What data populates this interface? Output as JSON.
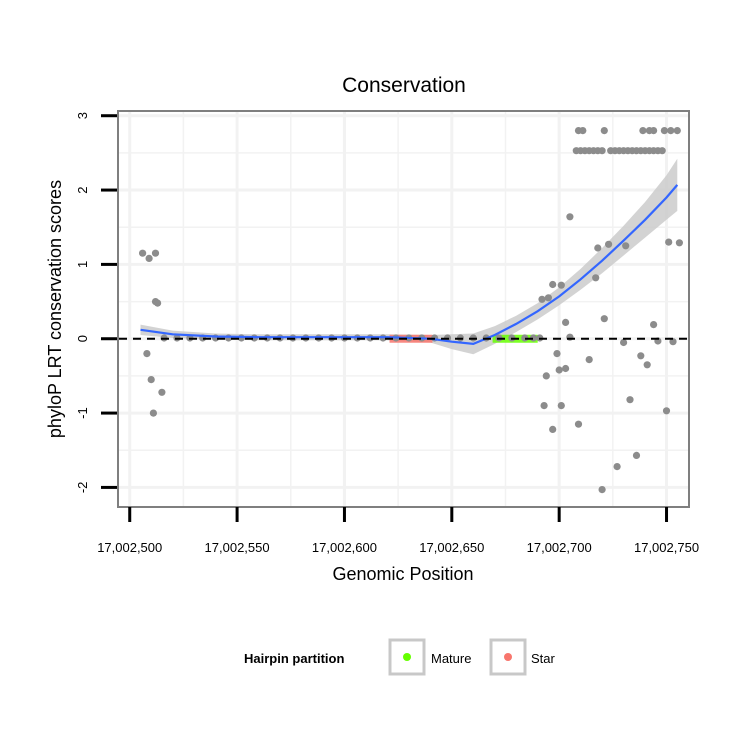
{
  "chart_data": {
    "type": "scatter",
    "title": "Conservation",
    "xlabel": "Genomic Position",
    "ylabel": "phyloP LRT conservation scores",
    "xlim": [
      17002495,
      17002760
    ],
    "ylim": [
      -2.25,
      3.05
    ],
    "x_ticks": [
      {
        "value": 17002500,
        "label": "17,002,500"
      },
      {
        "value": 17002550,
        "label": "17,002,550"
      },
      {
        "value": 17002600,
        "label": "17,002,600"
      },
      {
        "value": 17002650,
        "label": "17,002,650"
      },
      {
        "value": 17002700,
        "label": "17,002,700"
      },
      {
        "value": 17002750,
        "label": "17,002,750"
      }
    ],
    "y_ticks": [
      {
        "value": 3,
        "label": "3"
      },
      {
        "value": 2,
        "label": "2"
      },
      {
        "value": 1,
        "label": "1"
      },
      {
        "value": 0,
        "label": "0"
      },
      {
        "value": -1,
        "label": "-1"
      },
      {
        "value": -2,
        "label": "-2"
      }
    ],
    "reference_line": {
      "y": 0,
      "style": "dashed"
    },
    "points": [
      [
        17002506,
        1.15
      ],
      [
        17002509,
        1.08
      ],
      [
        17002512,
        1.15
      ],
      [
        17002512,
        0.5
      ],
      [
        17002513,
        0.48
      ],
      [
        17002508,
        -0.2
      ],
      [
        17002510,
        -0.55
      ],
      [
        17002511,
        -1.0
      ],
      [
        17002515,
        -0.72
      ],
      [
        17002516,
        0.01
      ],
      [
        17002522,
        0.01
      ],
      [
        17002528,
        0.01
      ],
      [
        17002534,
        0.01
      ],
      [
        17002540,
        0.01
      ],
      [
        17002546,
        0.01
      ],
      [
        17002552,
        0.01
      ],
      [
        17002558,
        0.01
      ],
      [
        17002564,
        0.01
      ],
      [
        17002570,
        0.01
      ],
      [
        17002576,
        0.01
      ],
      [
        17002582,
        0.01
      ],
      [
        17002588,
        0.01
      ],
      [
        17002594,
        0.01
      ],
      [
        17002600,
        0.01
      ],
      [
        17002606,
        0.01
      ],
      [
        17002612,
        0.01
      ],
      [
        17002618,
        0.01
      ],
      [
        17002624,
        0.01
      ],
      [
        17002630,
        0.01
      ],
      [
        17002636,
        0.01
      ],
      [
        17002642,
        0.01
      ],
      [
        17002648,
        0.01
      ],
      [
        17002654,
        0.01
      ],
      [
        17002660,
        0.01
      ],
      [
        17002666,
        0.01
      ],
      [
        17002672,
        0.01
      ],
      [
        17002678,
        0.01
      ],
      [
        17002684,
        0.01
      ],
      [
        17002688,
        0.01
      ],
      [
        17002692,
        0.53
      ],
      [
        17002695,
        0.55
      ],
      [
        17002697,
        0.73
      ],
      [
        17002701,
        0.72
      ],
      [
        17002703,
        0.22
      ],
      [
        17002705,
        1.64
      ],
      [
        17002691,
        0.01
      ],
      [
        17002694,
        -0.5
      ],
      [
        17002693,
        -0.9
      ],
      [
        17002697,
        -1.22
      ],
      [
        17002699,
        -0.2
      ],
      [
        17002700,
        -0.42
      ],
      [
        17002701,
        -0.9
      ],
      [
        17002703,
        -0.4
      ],
      [
        17002705,
        0.02
      ],
      [
        17002709,
        -1.15
      ],
      [
        17002714,
        -0.28
      ],
      [
        17002717,
        0.82
      ],
      [
        17002718,
        1.22
      ],
      [
        17002721,
        0.27
      ],
      [
        17002723,
        1.27
      ],
      [
        17002727,
        -1.72
      ],
      [
        17002731,
        1.25
      ],
      [
        17002730,
        -0.05
      ],
      [
        17002733,
        -0.82
      ],
      [
        17002736,
        -1.57
      ],
      [
        17002738,
        -0.23
      ],
      [
        17002741,
        -0.35
      ],
      [
        17002744,
        0.19
      ],
      [
        17002746,
        -0.03
      ],
      [
        17002750,
        -0.97
      ],
      [
        17002751,
        1.3
      ],
      [
        17002753,
        -0.04
      ],
      [
        17002756,
        1.29
      ],
      [
        17002720,
        -2.03
      ],
      [
        17002708,
        2.53
      ],
      [
        17002710,
        2.53
      ],
      [
        17002712,
        2.53
      ],
      [
        17002714,
        2.53
      ],
      [
        17002716,
        2.53
      ],
      [
        17002718,
        2.53
      ],
      [
        17002720,
        2.53
      ],
      [
        17002724,
        2.53
      ],
      [
        17002726,
        2.53
      ],
      [
        17002728,
        2.53
      ],
      [
        17002730,
        2.53
      ],
      [
        17002732,
        2.53
      ],
      [
        17002734,
        2.53
      ],
      [
        17002736,
        2.53
      ],
      [
        17002738,
        2.53
      ],
      [
        17002740,
        2.53
      ],
      [
        17002742,
        2.53
      ],
      [
        17002744,
        2.53
      ],
      [
        17002746,
        2.53
      ],
      [
        17002748,
        2.53
      ],
      [
        17002709,
        2.8
      ],
      [
        17002711,
        2.8
      ],
      [
        17002721,
        2.8
      ],
      [
        17002739,
        2.8
      ],
      [
        17002742,
        2.8
      ],
      [
        17002744,
        2.8
      ],
      [
        17002749,
        2.8
      ],
      [
        17002752,
        2.8
      ],
      [
        17002755,
        2.8
      ]
    ],
    "smooth": {
      "method": "loess",
      "color": "#3366ff",
      "x": [
        17002505,
        17002520,
        17002540,
        17002560,
        17002580,
        17002600,
        17002620,
        17002640,
        17002650,
        17002660,
        17002670,
        17002680,
        17002690,
        17002700,
        17002710,
        17002720,
        17002730,
        17002740,
        17002750,
        17002755
      ],
      "y": [
        0.12,
        0.06,
        0.03,
        0.02,
        0.02,
        0.02,
        0.02,
        0.0,
        -0.04,
        -0.07,
        0.05,
        0.2,
        0.37,
        0.57,
        0.8,
        1.05,
        1.32,
        1.6,
        1.9,
        2.07
      ],
      "band": [
        0.07,
        0.05,
        0.04,
        0.04,
        0.04,
        0.04,
        0.04,
        0.05,
        0.1,
        0.14,
        0.12,
        0.11,
        0.11,
        0.12,
        0.14,
        0.17,
        0.2,
        0.24,
        0.3,
        0.35
      ]
    },
    "partitions": [
      {
        "name": "Mature",
        "color": "#66ff00",
        "x_start": 17002669,
        "x_end": 17002690,
        "y": 0.0
      },
      {
        "name": "Star",
        "color": "#f8766d",
        "x_start": 17002621,
        "x_end": 17002641,
        "y": 0.0
      }
    ],
    "legend": {
      "title": "Hairpin partition",
      "position": "bottom",
      "items": [
        {
          "label": "Mature",
          "color": "#66ff00"
        },
        {
          "label": "Star",
          "color": "#f8766d"
        }
      ]
    },
    "colors": {
      "points": "#8c8c8c",
      "band": "#c8c8c8",
      "panel_border": "#7f7f7f",
      "grid": "#f2f2f2"
    }
  }
}
